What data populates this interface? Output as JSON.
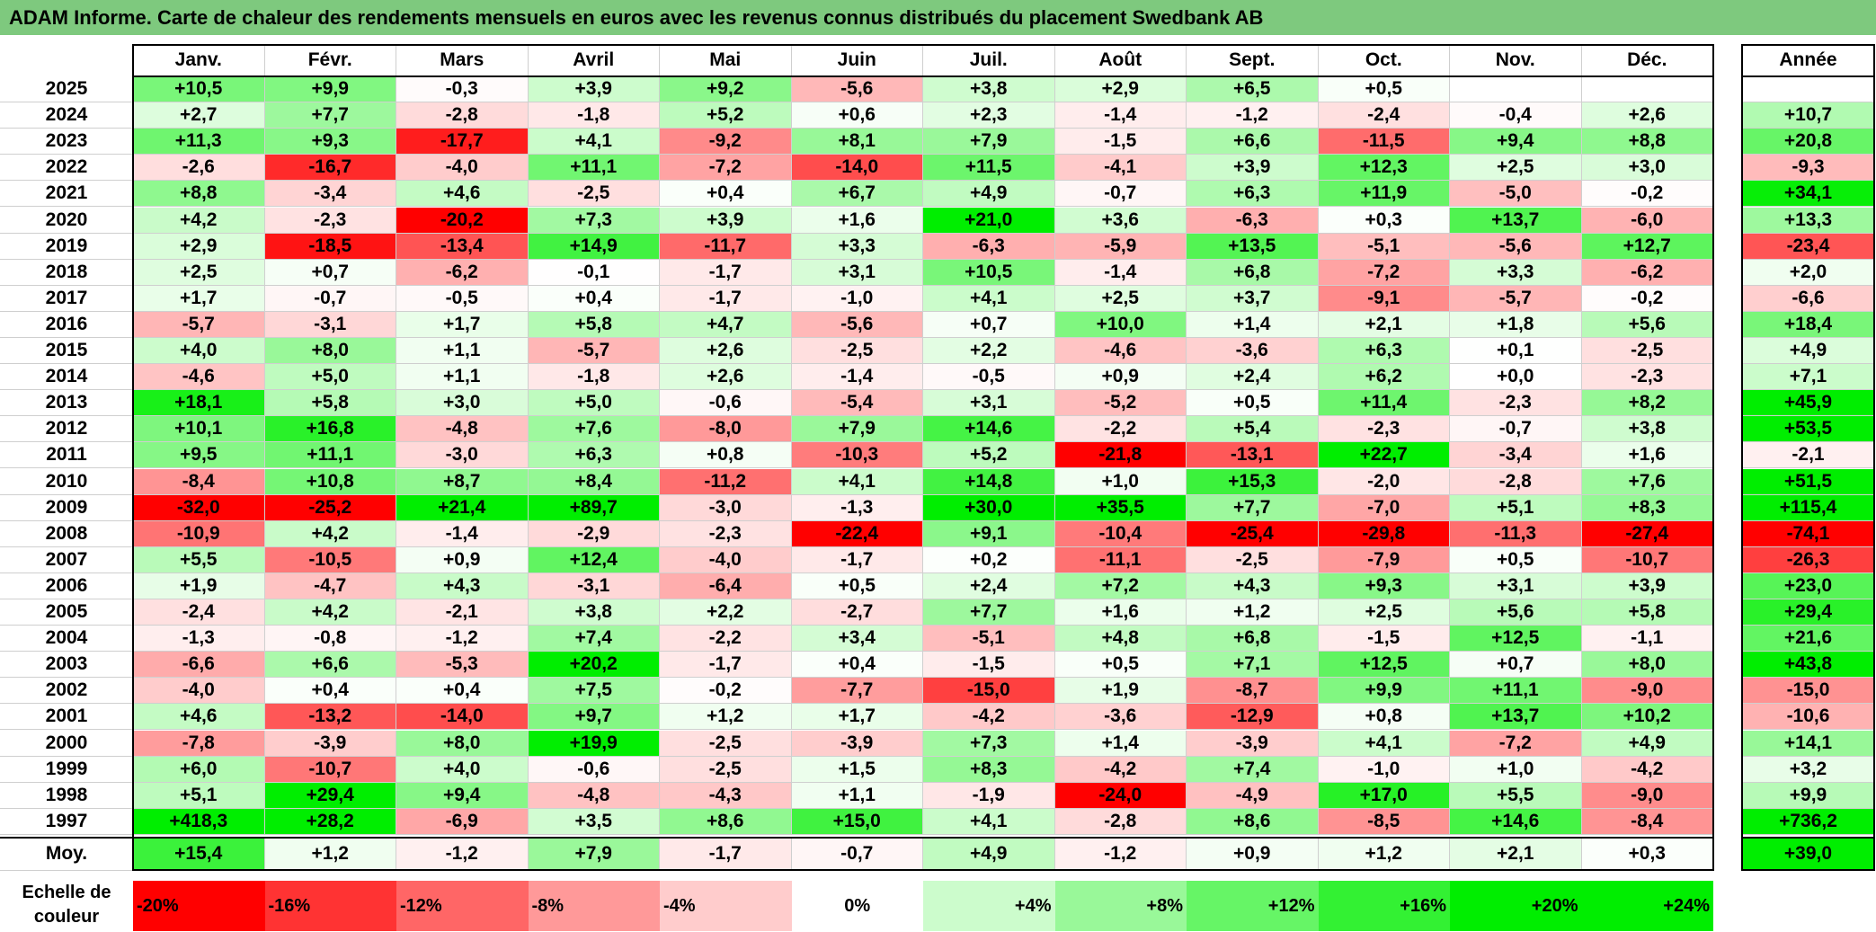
{
  "title": "ADAM Informe. Carte de chaleur des rendements mensuels en euros avec les revenus connus distribués du placement Swedbank AB",
  "chart_data": {
    "type": "heatmap",
    "title": "ADAM Informe. Carte de chaleur des rendements mensuels en euros avec les revenus connus distribués du placement Swedbank AB",
    "columns": [
      "Janv.",
      "Févr.",
      "Mars",
      "Avril",
      "Mai",
      "Juin",
      "Juil.",
      "Août",
      "Sept.",
      "Oct.",
      "Nov.",
      "Déc."
    ],
    "year_column_label": "Année",
    "rows": [
      {
        "year": "2025",
        "values": [
          "+10,5",
          "+9,9",
          "-0,3",
          "+3,9",
          "+9,2",
          "-5,6",
          "+3,8",
          "+2,9",
          "+6,5",
          "+0,5",
          "",
          ""
        ],
        "annual": ""
      },
      {
        "year": "2024",
        "values": [
          "+2,7",
          "+7,7",
          "-2,8",
          "-1,8",
          "+5,2",
          "+0,6",
          "+2,3",
          "-1,4",
          "-1,2",
          "-2,4",
          "-0,4",
          "+2,6"
        ],
        "annual": "+10,7"
      },
      {
        "year": "2023",
        "values": [
          "+11,3",
          "+9,3",
          "-17,7",
          "+4,1",
          "-9,2",
          "+8,1",
          "+7,9",
          "-1,5",
          "+6,6",
          "-11,5",
          "+9,4",
          "+8,8"
        ],
        "annual": "+20,8"
      },
      {
        "year": "2022",
        "values": [
          "-2,6",
          "-16,7",
          "-4,0",
          "+11,1",
          "-7,2",
          "-14,0",
          "+11,5",
          "-4,1",
          "+3,9",
          "+12,3",
          "+2,5",
          "+3,0"
        ],
        "annual": "-9,3"
      },
      {
        "year": "2021",
        "values": [
          "+8,8",
          "-3,4",
          "+4,6",
          "-2,5",
          "+0,4",
          "+6,7",
          "+4,9",
          "-0,7",
          "+6,3",
          "+11,9",
          "-5,0",
          "-0,2"
        ],
        "annual": "+34,1"
      },
      {
        "year": "2020",
        "values": [
          "+4,2",
          "-2,3",
          "-20,2",
          "+7,3",
          "+3,9",
          "+1,6",
          "+21,0",
          "+3,6",
          "-6,3",
          "+0,3",
          "+13,7",
          "-6,0"
        ],
        "annual": "+13,3"
      },
      {
        "year": "2019",
        "values": [
          "+2,9",
          "-18,5",
          "-13,4",
          "+14,9",
          "-11,7",
          "+3,3",
          "-6,3",
          "-5,9",
          "+13,5",
          "-5,1",
          "-5,6",
          "+12,7"
        ],
        "annual": "-23,4"
      },
      {
        "year": "2018",
        "values": [
          "+2,5",
          "+0,7",
          "-6,2",
          "-0,1",
          "-1,7",
          "+3,1",
          "+10,5",
          "-1,4",
          "+6,8",
          "-7,2",
          "+3,3",
          "-6,2"
        ],
        "annual": "+2,0"
      },
      {
        "year": "2017",
        "values": [
          "+1,7",
          "-0,7",
          "-0,5",
          "+0,4",
          "-1,7",
          "-1,0",
          "+4,1",
          "+2,5",
          "+3,7",
          "-9,1",
          "-5,7",
          "-0,2"
        ],
        "annual": "-6,6"
      },
      {
        "year": "2016",
        "values": [
          "-5,7",
          "-3,1",
          "+1,7",
          "+5,8",
          "+4,7",
          "-5,6",
          "+0,7",
          "+10,0",
          "+1,4",
          "+2,1",
          "+1,8",
          "+5,6"
        ],
        "annual": "+18,4"
      },
      {
        "year": "2015",
        "values": [
          "+4,0",
          "+8,0",
          "+1,1",
          "-5,7",
          "+2,6",
          "-2,5",
          "+2,2",
          "-4,6",
          "-3,6",
          "+6,3",
          "+0,1",
          "-2,5"
        ],
        "annual": "+4,9"
      },
      {
        "year": "2014",
        "values": [
          "-4,6",
          "+5,0",
          "+1,1",
          "-1,8",
          "+2,6",
          "-1,4",
          "-0,5",
          "+0,9",
          "+2,4",
          "+6,2",
          "+0,0",
          "-2,3"
        ],
        "annual": "+7,1"
      },
      {
        "year": "2013",
        "values": [
          "+18,1",
          "+5,8",
          "+3,0",
          "+5,0",
          "-0,6",
          "-5,4",
          "+3,1",
          "-5,2",
          "+0,5",
          "+11,4",
          "-2,3",
          "+8,2"
        ],
        "annual": "+45,9"
      },
      {
        "year": "2012",
        "values": [
          "+10,1",
          "+16,8",
          "-4,8",
          "+7,6",
          "-8,0",
          "+7,9",
          "+14,6",
          "-2,2",
          "+5,4",
          "-2,3",
          "-0,7",
          "+3,8"
        ],
        "annual": "+53,5"
      },
      {
        "year": "2011",
        "values": [
          "+9,5",
          "+11,1",
          "-3,0",
          "+6,3",
          "+0,8",
          "-10,3",
          "+5,2",
          "-21,8",
          "-13,1",
          "+22,7",
          "-3,4",
          "+1,6"
        ],
        "annual": "-2,1"
      },
      {
        "year": "2010",
        "values": [
          "-8,4",
          "+10,8",
          "+8,7",
          "+8,4",
          "-11,2",
          "+4,1",
          "+14,8",
          "+1,0",
          "+15,3",
          "-2,0",
          "-2,8",
          "+7,6"
        ],
        "annual": "+51,5"
      },
      {
        "year": "2009",
        "values": [
          "-32,0",
          "-25,2",
          "+21,4",
          "+89,7",
          "-3,0",
          "-1,3",
          "+30,0",
          "+35,5",
          "+7,7",
          "-7,0",
          "+5,1",
          "+8,3"
        ],
        "annual": "+115,4"
      },
      {
        "year": "2008",
        "values": [
          "-10,9",
          "+4,2",
          "-1,4",
          "-2,9",
          "-2,3",
          "-22,4",
          "+9,1",
          "-10,4",
          "-25,4",
          "-29,8",
          "-11,3",
          "-27,4"
        ],
        "annual": "-74,1"
      },
      {
        "year": "2007",
        "values": [
          "+5,5",
          "-10,5",
          "+0,9",
          "+12,4",
          "-4,0",
          "-1,7",
          "+0,2",
          "-11,1",
          "-2,5",
          "-7,9",
          "+0,5",
          "-10,7"
        ],
        "annual": "-26,3"
      },
      {
        "year": "2006",
        "values": [
          "+1,9",
          "-4,7",
          "+4,3",
          "-3,1",
          "-6,4",
          "+0,5",
          "+2,4",
          "+7,2",
          "+4,3",
          "+9,3",
          "+3,1",
          "+3,9"
        ],
        "annual": "+23,0"
      },
      {
        "year": "2005",
        "values": [
          "-2,4",
          "+4,2",
          "-2,1",
          "+3,8",
          "+2,2",
          "-2,7",
          "+7,7",
          "+1,6",
          "+1,2",
          "+2,5",
          "+5,6",
          "+5,8"
        ],
        "annual": "+29,4"
      },
      {
        "year": "2004",
        "values": [
          "-1,3",
          "-0,8",
          "-1,2",
          "+7,4",
          "-2,2",
          "+3,4",
          "-5,1",
          "+4,8",
          "+6,8",
          "-1,5",
          "+12,5",
          "-1,1"
        ],
        "annual": "+21,6"
      },
      {
        "year": "2003",
        "values": [
          "-6,6",
          "+6,6",
          "-5,3",
          "+20,2",
          "-1,7",
          "+0,4",
          "-1,5",
          "+0,5",
          "+7,1",
          "+12,5",
          "+0,7",
          "+8,0"
        ],
        "annual": "+43,8"
      },
      {
        "year": "2002",
        "values": [
          "-4,0",
          "+0,4",
          "+0,4",
          "+7,5",
          "-0,2",
          "-7,7",
          "-15,0",
          "+1,9",
          "-8,7",
          "+9,9",
          "+11,1",
          "-9,0"
        ],
        "annual": "-15,0"
      },
      {
        "year": "2001",
        "values": [
          "+4,6",
          "-13,2",
          "-14,0",
          "+9,7",
          "+1,2",
          "+1,7",
          "-4,2",
          "-3,6",
          "-12,9",
          "+0,8",
          "+13,7",
          "+10,2"
        ],
        "annual": "-10,6"
      },
      {
        "year": "2000",
        "values": [
          "-7,8",
          "-3,9",
          "+8,0",
          "+19,9",
          "-2,5",
          "-3,9",
          "+7,3",
          "+1,4",
          "-3,9",
          "+4,1",
          "-7,2",
          "+4,9"
        ],
        "annual": "+14,1"
      },
      {
        "year": "1999",
        "values": [
          "+6,0",
          "-10,7",
          "+4,0",
          "-0,6",
          "-2,5",
          "+1,5",
          "+8,3",
          "-4,2",
          "+7,4",
          "-1,0",
          "+1,0",
          "-4,2"
        ],
        "annual": "+3,2"
      },
      {
        "year": "1998",
        "values": [
          "+5,1",
          "+29,4",
          "+9,4",
          "-4,8",
          "-4,3",
          "+1,1",
          "-1,9",
          "-24,0",
          "-4,9",
          "+17,0",
          "+5,5",
          "-9,0"
        ],
        "annual": "+9,9"
      },
      {
        "year": "1997",
        "values": [
          "+418,3",
          "+28,2",
          "-6,9",
          "+3,5",
          "+8,6",
          "+15,0",
          "+4,1",
          "-2,8",
          "+8,6",
          "-8,5",
          "+14,6",
          "-8,4"
        ],
        "annual": "+736,2"
      }
    ],
    "average": {
      "label": "Moy.",
      "values": [
        "+15,4",
        "+1,2",
        "-1,2",
        "+7,9",
        "-1,7",
        "-0,7",
        "+4,9",
        "-1,2",
        "+0,9",
        "+1,2",
        "+2,1",
        "+0,3"
      ],
      "annual": "+39,0"
    },
    "color_scale": {
      "label_line1": "Echelle de",
      "label_line2": "couleur",
      "stops": [
        "-20%",
        "-16%",
        "-12%",
        "-8%",
        "-4%",
        "0%",
        "+4%",
        "+8%",
        "+12%",
        "+16%",
        "+20%",
        "+24%"
      ],
      "stop_values": [
        -20,
        -16,
        -12,
        -8,
        -4,
        0,
        4,
        8,
        12,
        16,
        20,
        24
      ],
      "negative_color": "#ff0000",
      "neutral_color": "#ffffff",
      "positive_color": "#00ee00"
    }
  }
}
